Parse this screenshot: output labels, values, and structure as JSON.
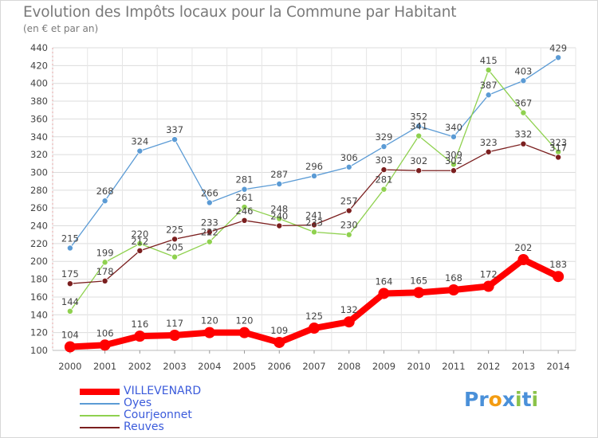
{
  "title": "Evolution des Impôts locaux pour la Commune par Habitant",
  "subtitle": "(en € et par an)",
  "chart_data": {
    "type": "line",
    "title": "Evolution des Impôts locaux pour la Commune par Habitant",
    "subtitle": "(en € et par an)",
    "xlabel": "",
    "ylabel": "",
    "x": [
      "2000",
      "2001",
      "2002",
      "2003",
      "2004",
      "2005",
      "2006",
      "2007",
      "2008",
      "2009",
      "2010",
      "2011",
      "2012",
      "2013",
      "2014"
    ],
    "yticks": [
      100,
      120,
      140,
      160,
      180,
      200,
      220,
      240,
      260,
      280,
      300,
      320,
      340,
      360,
      380,
      400,
      420,
      440
    ],
    "ylim": [
      100,
      440
    ],
    "grid": true,
    "legend_position": "bottom-left",
    "series": [
      {
        "name": "VILLEVENARD",
        "color": "#ff0000",
        "values": [
          104,
          106,
          116,
          117,
          120,
          120,
          109,
          125,
          132,
          164,
          165,
          168,
          172,
          202,
          183
        ]
      },
      {
        "name": "Oyes",
        "color": "#5b9bd5",
        "values": [
          215,
          268,
          324,
          337,
          266,
          281,
          287,
          296,
          306,
          329,
          352,
          340,
          387,
          403,
          429
        ]
      },
      {
        "name": "Courjeonnet",
        "color": "#8fd14f",
        "values": [
          144,
          199,
          220,
          205,
          222,
          261,
          248,
          233,
          230,
          281,
          341,
          309,
          415,
          367,
          323
        ]
      },
      {
        "name": "Reuves",
        "color": "#7b1f1f",
        "values": [
          175,
          178,
          212,
          225,
          233,
          246,
          240,
          241,
          257,
          303,
          302,
          302,
          323,
          332,
          317
        ]
      }
    ]
  },
  "logo": {
    "letters": [
      "P",
      "r",
      "o",
      "x",
      "i",
      "t",
      "i"
    ],
    "colors": [
      "#4a90d9",
      "#4a90d9",
      "#f39c12",
      "#4a90d9",
      "#8bc34a",
      "#4a90d9",
      "#8bc34a"
    ]
  }
}
